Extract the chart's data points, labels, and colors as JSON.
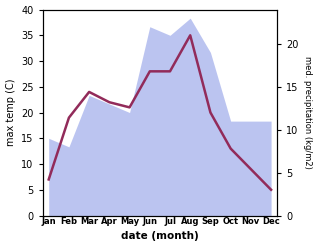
{
  "months": [
    "Jan",
    "Feb",
    "Mar",
    "Apr",
    "May",
    "Jun",
    "Jul",
    "Aug",
    "Sep",
    "Oct",
    "Nov",
    "Dec"
  ],
  "month_positions": [
    0,
    1,
    2,
    3,
    4,
    5,
    6,
    7,
    8,
    9,
    10,
    11
  ],
  "temperature": [
    7,
    19,
    24,
    22,
    21,
    28,
    28,
    35,
    20,
    13,
    9,
    5
  ],
  "precipitation": [
    9,
    8,
    14,
    13,
    12,
    22,
    21,
    23,
    19,
    11,
    11,
    11
  ],
  "temp_color": "#922b5a",
  "precip_color": "#b0baee",
  "background_color": "#ffffff",
  "ylabel_left": "max temp (C)",
  "ylabel_right": "med. precipitation (kg/m2)",
  "xlabel": "date (month)",
  "ylim_left": [
    0,
    40
  ],
  "ylim_right": [
    0,
    24
  ],
  "temp_linewidth": 1.8,
  "title": ""
}
